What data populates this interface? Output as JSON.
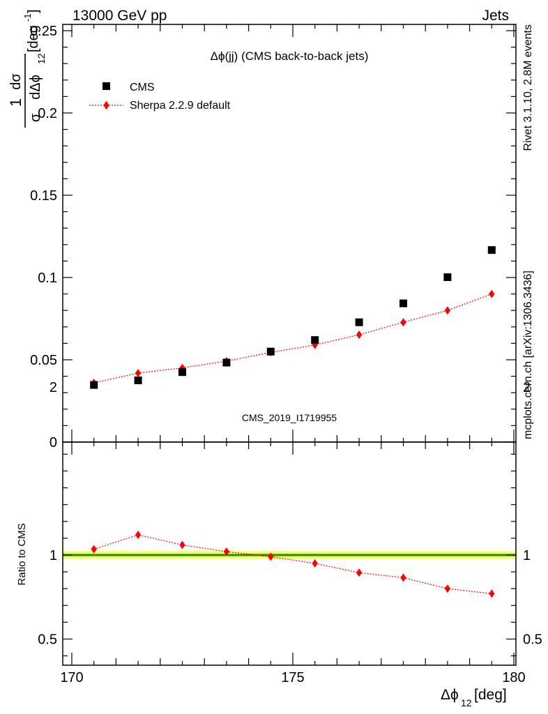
{
  "header": {
    "left": "13000 GeV pp",
    "right": "Jets"
  },
  "side_text": {
    "rivet": "Rivet 3.1.10,  2.8M events",
    "site": "mcplots.cern.ch [arXiv:1306.3436]"
  },
  "plot": {
    "title": "Δϕ(jj) (CMS back-to-back jets)",
    "watermark": "CMS_2019_I1719955",
    "ylabel_top": {
      "one": "1",
      "dsigma": "dσ",
      "sigma": "σ",
      "dDelta": "dΔϕ",
      "sub": "12",
      "unit_open": "[deg",
      "unit_exp": "-1",
      "unit_close": "]"
    },
    "ylabel_bottom": "Ratio to CMS",
    "xlabel": {
      "main": "Δϕ",
      "sub": "12",
      "unit": " [deg]"
    }
  },
  "colors": {
    "data": "#000000",
    "mc": "#ff0000",
    "band_outer": "#ffff7a",
    "band_inner": "#94d94c",
    "unity": "#006400"
  },
  "chart_data": {
    "type": "scatter",
    "x": [
      170.5,
      171.5,
      172.5,
      173.5,
      174.5,
      175.5,
      176.5,
      177.5,
      178.5,
      179.5
    ],
    "xlim": [
      170,
      180
    ],
    "xticks": [
      170,
      175,
      180
    ],
    "xtick_labels": [
      "170",
      "175",
      "180"
    ],
    "main": {
      "ylim": [
        0,
        0.255
      ],
      "yticks": [
        0,
        0.05,
        0.1,
        0.15,
        0.2,
        0.25
      ],
      "ytick_labels": [
        "0",
        "0.05",
        "0.1",
        "0.15",
        "0.2",
        "0.25"
      ],
      "series": [
        {
          "name": "CMS",
          "marker": "square",
          "values": [
            0.0347,
            0.0375,
            0.0425,
            0.0483,
            0.055,
            0.062,
            0.0728,
            0.0843,
            0.1002,
            0.1167
          ]
        },
        {
          "name": "Sherpa 2.2.9 default",
          "marker": "diamond-line",
          "values": [
            0.036,
            0.0419,
            0.0451,
            0.0492,
            0.0545,
            0.059,
            0.0652,
            0.0728,
            0.08,
            0.09
          ]
        }
      ]
    },
    "ratio": {
      "ylim": [
        0.35,
        2.25
      ],
      "yticks": [
        0.5,
        1,
        2
      ],
      "ytick_labels": [
        "0.5",
        "1",
        "2"
      ],
      "band": {
        "inner": 0.01,
        "outer": 0.025
      },
      "values": [
        1.035,
        1.12,
        1.06,
        1.02,
        0.99,
        0.95,
        0.895,
        0.865,
        0.8,
        0.77
      ]
    },
    "legend_position": "top-left"
  }
}
